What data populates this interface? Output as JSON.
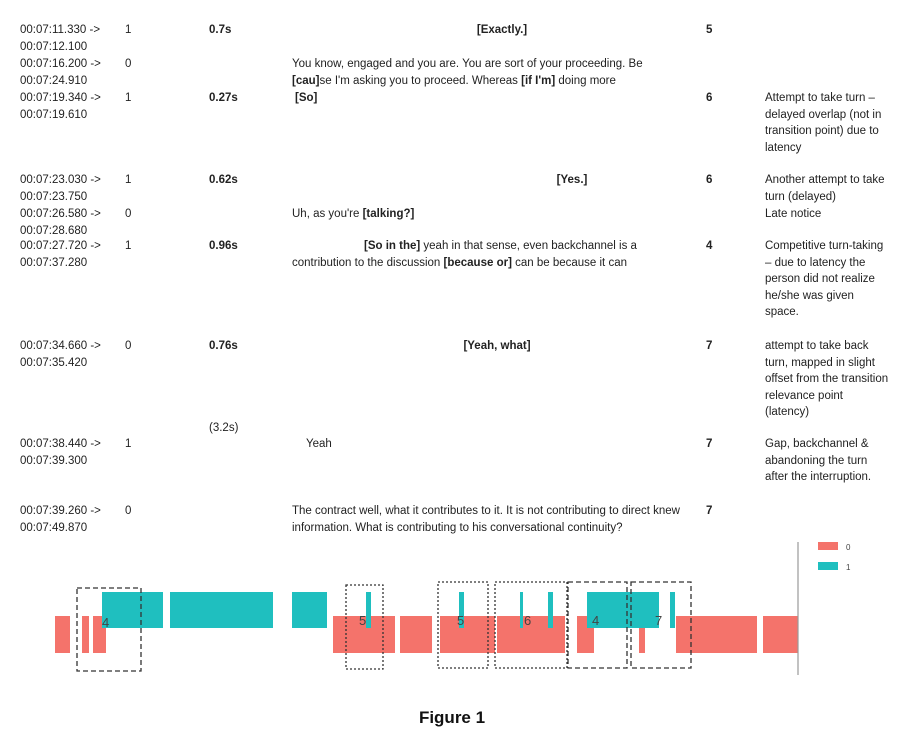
{
  "rows": [
    {
      "time_start": "00:07:11.330 ->",
      "time_end": "00:07:12.100",
      "speaker": "1",
      "gap": "0.7s",
      "utterance": [
        {
          "text": "[Exactly.]",
          "bold": true
        }
      ],
      "align": "center",
      "rating": "5",
      "note": ""
    },
    {
      "time_start": "00:07:16.200 ->",
      "time_end": "00:07:24.910",
      "speaker": "0",
      "gap": "",
      "utterance": [
        {
          "text": "You know, engaged and you are. You are sort of your proceeding. Be ",
          "bold": false
        },
        {
          "text": "[cau]",
          "bold": true
        },
        {
          "text": "se I'm asking you to proceed. Whereas ",
          "bold": false
        },
        {
          "text": "[if I'm]",
          "bold": true
        },
        {
          "text": " doing more",
          "bold": false
        }
      ],
      "align": "left",
      "rating": "",
      "note": ""
    },
    {
      "time_start": "00:07:19.340 ->",
      "time_end": "00:07:19.610",
      "speaker": "1",
      "gap": "0.27s",
      "utterance": [
        {
          "text": "[So]",
          "bold": true
        }
      ],
      "align": "left",
      "rating": "6",
      "note": "Attempt to take turn – delayed overlap (not in transition point) due to latency"
    },
    {
      "time_start": "00:07:23.030 ->",
      "time_end": "00:07:23.750",
      "speaker": "1",
      "gap": "0.62s",
      "utterance": [
        {
          "text": "[Yes.]",
          "bold": true
        }
      ],
      "align": "center",
      "rating": "6",
      "note": "Another attempt to take turn (delayed)"
    },
    {
      "time_start": "00:07:26.580 ->",
      "time_end": "00:07:28.680",
      "speaker": "0",
      "gap": "",
      "utterance": [
        {
          "text": "Uh, as you're ",
          "bold": false
        },
        {
          "text": "[talking?]",
          "bold": true
        }
      ],
      "align": "left",
      "rating": "",
      "note": "Late notice"
    },
    {
      "time_start": "00:07:27.720 ->",
      "time_end": "00:07:37.280",
      "speaker": "1",
      "gap": "0.96s",
      "utterance": [
        {
          "text": "[So in the]",
          "bold": true
        },
        {
          "text": " yeah in that sense, even backchannel is a contribution to the discussion ",
          "bold": false
        },
        {
          "text": "[because or]",
          "bold": true
        },
        {
          "text": " can be because it can",
          "bold": false
        }
      ],
      "align": "left",
      "rating": "4",
      "note": "Competitive turn-taking – due to latency the person did not realize he/she was given space."
    },
    {
      "time_start": "00:07:34.660 ->",
      "time_end": "00:07:35.420",
      "speaker": "0",
      "gap": "0.76s",
      "utterance": [
        {
          "text": "[Yeah, what]",
          "bold": true
        }
      ],
      "align": "center",
      "rating": "7",
      "note": "attempt to take back turn, mapped in slight offset from the transition relevance point (latency)"
    },
    {
      "time_start": "00:07:38.440 ->",
      "time_end": "00:07:39.300",
      "speaker": "1",
      "gap": "",
      "utterance": [
        {
          "text": "Yeah",
          "bold": false
        }
      ],
      "align": "left",
      "rating": "7",
      "note": "Gap, backchannel & abandoning the turn after the interruption."
    },
    {
      "time_start": "00:07:39.260 ->",
      "time_end": "00:07:49.870",
      "speaker": "0",
      "gap": "",
      "utterance": [
        {
          "text": "The contract well, what it contributes to it. It is not contributing to direct knew information. What is contributing to his conversational continuity?",
          "bold": false
        }
      ],
      "align": "left",
      "rating": "7",
      "note": ""
    }
  ],
  "pause_label": "(3.2s)",
  "timeline": {
    "legend": [
      {
        "label": "0",
        "color": "#f4736b"
      },
      {
        "label": "1",
        "color": "#1fbfbf"
      }
    ],
    "box_labels": [
      "4",
      "5",
      "5",
      "6",
      "4",
      "7"
    ]
  },
  "caption": "Figure 1"
}
